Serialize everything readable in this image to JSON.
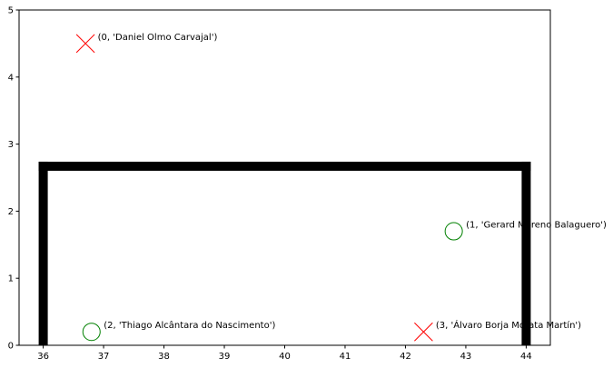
{
  "chart_data": {
    "type": "scatter",
    "title": "",
    "xlabel": "",
    "ylabel": "",
    "xlim": [
      35.6,
      44.4
    ],
    "ylim": [
      0,
      5
    ],
    "xticks": [
      36,
      37,
      38,
      39,
      40,
      41,
      42,
      43,
      44
    ],
    "yticks": [
      0,
      1,
      2,
      3,
      4,
      5
    ],
    "grid": false,
    "goal_frame": {
      "color": "#000000",
      "left_post_x": 36,
      "right_post_x": 44,
      "crossbar_y": 2.67
    },
    "points": [
      {
        "x": 36.7,
        "y": 4.5,
        "marker": "x",
        "color": "#ff0000",
        "label": "(0, 'Daniel Olmo Carvajal')"
      },
      {
        "x": 42.8,
        "y": 1.7,
        "marker": "o",
        "color": "#008000",
        "label": "(1, 'Gerard Moreno Balaguero')"
      },
      {
        "x": 36.8,
        "y": 0.2,
        "marker": "o",
        "color": "#008000",
        "label": "(2, 'Thiago Alcântara do Nascimento')"
      },
      {
        "x": 42.3,
        "y": 0.2,
        "marker": "x",
        "color": "#ff0000",
        "label": "(3, 'Álvaro Borja Morata Martín')"
      }
    ]
  }
}
